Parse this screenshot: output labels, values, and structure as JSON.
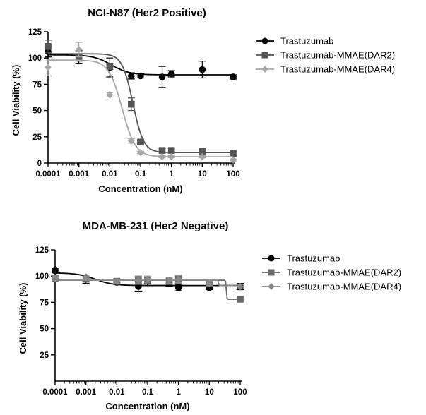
{
  "chart_data": [
    {
      "type": "scatter",
      "title": "NCI-N87  (Her2 Positive)",
      "xlabel": "Concentration (nM)",
      "ylabel": "Cell Viability (%)",
      "xscale": "log",
      "xlim": [
        0.0001,
        100
      ],
      "ylim": [
        0,
        125
      ],
      "xticks": [
        "0.0001",
        "0.001",
        "0.01",
        "0.1",
        "1",
        "10",
        "100"
      ],
      "yticks": [
        "0",
        "25",
        "50",
        "75",
        "100",
        "125"
      ],
      "legend_position": "right",
      "grid": false,
      "series": [
        {
          "name": "Trastuzumab",
          "marker": "circle",
          "color": "#000000",
          "x": [
            0.0001,
            0.001,
            0.01,
            0.05,
            0.1,
            0.5,
            1,
            10,
            100
          ],
          "y": [
            106,
            101,
            91,
            83,
            83,
            82,
            85,
            89,
            82
          ],
          "err": [
            5,
            6,
            9,
            3,
            2,
            10,
            3,
            8,
            2
          ],
          "fit": {
            "top": 103,
            "bottom": 84,
            "logEC50": -1.95,
            "hill": 1.5
          }
        },
        {
          "name": "Trastuzumab-MMAE(DAR2)",
          "marker": "square",
          "color": "#555555",
          "x": [
            0.0001,
            0.001,
            0.01,
            0.05,
            0.1,
            0.5,
            1,
            10,
            100
          ],
          "y": [
            111,
            100,
            92,
            56,
            20,
            12,
            12,
            11,
            9
          ],
          "err": [
            6,
            3,
            3,
            6,
            2,
            2,
            2,
            2,
            2
          ],
          "fit": {
            "top": 104,
            "bottom": 10,
            "logEC50": -1.25,
            "hill": 2.5
          }
        },
        {
          "name": "Trastuzumab-MMAE(DAR4)",
          "marker": "diamond",
          "color": "#a6a6a6",
          "x": [
            0.0001,
            0.001,
            0.01,
            0.05,
            0.1,
            0.5,
            1,
            10,
            100
          ],
          "y": [
            91,
            108,
            65,
            21,
            10,
            6,
            6,
            6,
            3
          ],
          "err": [
            8,
            7,
            2,
            2,
            1,
            1,
            1,
            1,
            1
          ],
          "fit": {
            "top": 98,
            "bottom": 6,
            "logEC50": -1.6,
            "hill": 2.0
          }
        }
      ]
    },
    {
      "type": "scatter",
      "title": "MDA-MB-231 (Her2 Negative)",
      "xlabel": "Concentration (nM)",
      "ylabel": "Cell Viability (%)",
      "xscale": "log",
      "xlim": [
        0.0001,
        100
      ],
      "ylim": [
        0,
        125
      ],
      "xticks": [
        "0.0001",
        "0.001",
        "0.01",
        "0.1",
        "1",
        "10",
        "100"
      ],
      "yticks": [
        "25",
        "50",
        "75",
        "100",
        "125"
      ],
      "legend_position": "right",
      "grid": false,
      "series": [
        {
          "name": "Trastuzumab",
          "marker": "circle",
          "color": "#000000",
          "x": [
            0.0001,
            0.001,
            0.01,
            0.05,
            0.1,
            0.5,
            1,
            10,
            100
          ],
          "y": [
            105,
            97,
            94,
            90,
            95,
            93,
            89,
            89,
            90
          ],
          "err": [
            2,
            4,
            2,
            5,
            4,
            3,
            3,
            2,
            3
          ],
          "fit": {
            "top": 103,
            "bottom": 91,
            "logEC50": -2.7,
            "hill": 1.5
          }
        },
        {
          "name": "Trastuzumab-MMAE(DAR2)",
          "marker": "square",
          "color": "#666666",
          "x": [
            0.0001,
            0.001,
            0.01,
            0.05,
            0.1,
            0.5,
            1,
            10,
            100
          ],
          "y": [
            98,
            97,
            95,
            96,
            96,
            95,
            97,
            93,
            78
          ],
          "err": [
            2,
            2,
            2,
            4,
            3,
            3,
            3,
            2,
            2
          ],
          "fit": {
            "top": 96,
            "bottom": 78,
            "logEC50": 1.55,
            "hill": 50
          }
        },
        {
          "name": "Trastuzumab-MMAE(DAR4)",
          "marker": "diamond",
          "color": "#888888",
          "x": [
            0.0001,
            0.001,
            0.01,
            0.05,
            0.1,
            0.5,
            1,
            10,
            100
          ],
          "y": [
            98,
            99,
            95,
            96,
            97,
            96,
            97,
            93,
            90
          ],
          "err": [
            2,
            2,
            2,
            3,
            3,
            3,
            4,
            2,
            2
          ],
          "fit": {
            "top": 96,
            "bottom": 91,
            "logEC50": 1.3,
            "hill": 50
          }
        }
      ]
    }
  ]
}
